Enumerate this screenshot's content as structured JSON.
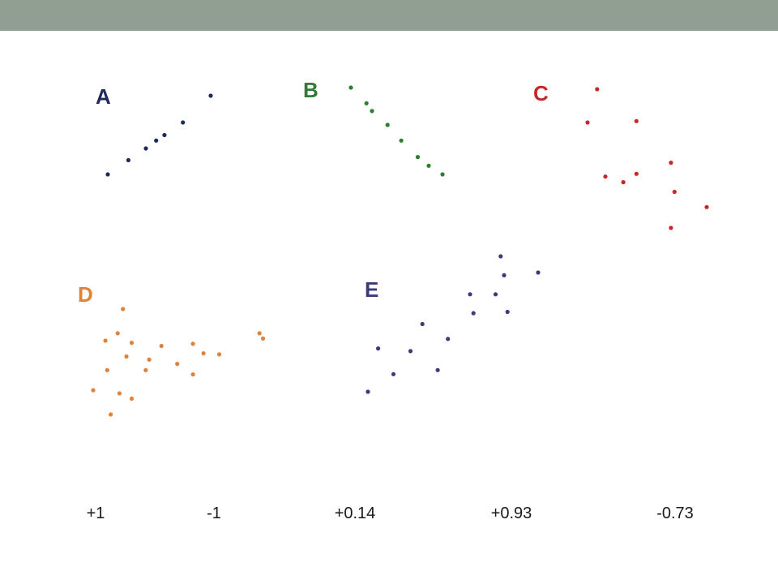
{
  "slide": {
    "header_color": "#919e92"
  },
  "chart_data": [
    {
      "type": "scatter",
      "panel_label": "A",
      "color": "#1f2a5c",
      "points": [
        [
          0.0,
          0.0
        ],
        [
          0.2,
          0.18
        ],
        [
          0.37,
          0.33
        ],
        [
          0.47,
          0.43
        ],
        [
          0.55,
          0.5
        ],
        [
          0.73,
          0.66
        ],
        [
          1.0,
          1.0
        ]
      ]
    },
    {
      "type": "scatter",
      "panel_label": "B",
      "color": "#2e7d32",
      "points": [
        [
          0.0,
          1.0
        ],
        [
          0.17,
          0.82
        ],
        [
          0.23,
          0.73
        ],
        [
          0.4,
          0.57
        ],
        [
          0.55,
          0.39
        ],
        [
          0.73,
          0.2
        ],
        [
          0.85,
          0.1
        ],
        [
          1.0,
          0.0
        ]
      ]
    },
    {
      "type": "scatter",
      "panel_label": "C",
      "color": "#c62828",
      "points": [
        [
          0.08,
          1.0
        ],
        [
          0.0,
          0.76
        ],
        [
          0.41,
          0.77
        ],
        [
          0.7,
          0.47
        ],
        [
          0.15,
          0.37
        ],
        [
          0.41,
          0.39
        ],
        [
          0.73,
          0.26
        ],
        [
          1.0,
          0.15
        ],
        [
          0.7,
          0.0
        ],
        [
          0.3,
          0.33
        ]
      ]
    },
    {
      "type": "scatter",
      "panel_label": "D",
      "color": "#e0833a",
      "points": [
        [
          0.17,
          1.0
        ],
        [
          0.14,
          0.77
        ],
        [
          0.07,
          0.7
        ],
        [
          0.22,
          0.68
        ],
        [
          0.39,
          0.65
        ],
        [
          0.57,
          0.67
        ],
        [
          0.63,
          0.58
        ],
        [
          0.72,
          0.57
        ],
        [
          0.19,
          0.55
        ],
        [
          0.32,
          0.52
        ],
        [
          0.48,
          0.48
        ],
        [
          0.08,
          0.42
        ],
        [
          0.3,
          0.42
        ],
        [
          0.57,
          0.38
        ],
        [
          0.0,
          0.23
        ],
        [
          0.15,
          0.2
        ],
        [
          0.22,
          0.15
        ],
        [
          0.1,
          0.0
        ],
        [
          0.95,
          0.77
        ],
        [
          0.97,
          0.72
        ]
      ]
    },
    {
      "type": "scatter",
      "panel_label": "E",
      "color": "#3d3a7a",
      "points": [
        [
          0.0,
          0.0
        ],
        [
          0.06,
          0.32
        ],
        [
          0.15,
          0.13
        ],
        [
          0.25,
          0.3
        ],
        [
          0.32,
          0.5
        ],
        [
          0.41,
          0.16
        ],
        [
          0.47,
          0.39
        ],
        [
          0.6,
          0.72
        ],
        [
          0.62,
          0.58
        ],
        [
          0.75,
          0.72
        ],
        [
          0.78,
          1.0
        ],
        [
          0.8,
          0.86
        ],
        [
          0.82,
          0.59
        ],
        [
          1.0,
          0.88
        ]
      ]
    }
  ],
  "answers": [
    "+1",
    "-1",
    "+0.14",
    "+0.93",
    "-0.73"
  ]
}
